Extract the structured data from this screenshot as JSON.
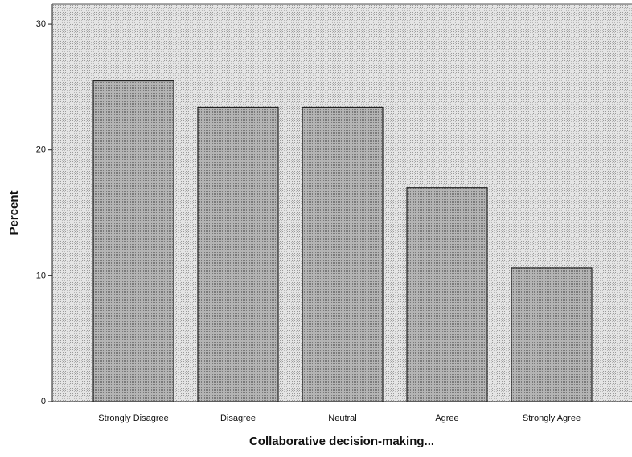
{
  "chart_data": {
    "type": "bar",
    "x_label": "Collaborative decision-making...",
    "y_label": "Percent",
    "categories": [
      "Strongly Disagree",
      "Disagree",
      "Neutral",
      "Agree",
      "Strongly Agree"
    ],
    "values": [
      25.5,
      23.4,
      23.4,
      17.0,
      10.6
    ],
    "color": "#a8a8a8",
    "ylim": [
      0,
      31.6
    ],
    "yticks": [
      0,
      10,
      20,
      30
    ],
    "grid": false
  }
}
